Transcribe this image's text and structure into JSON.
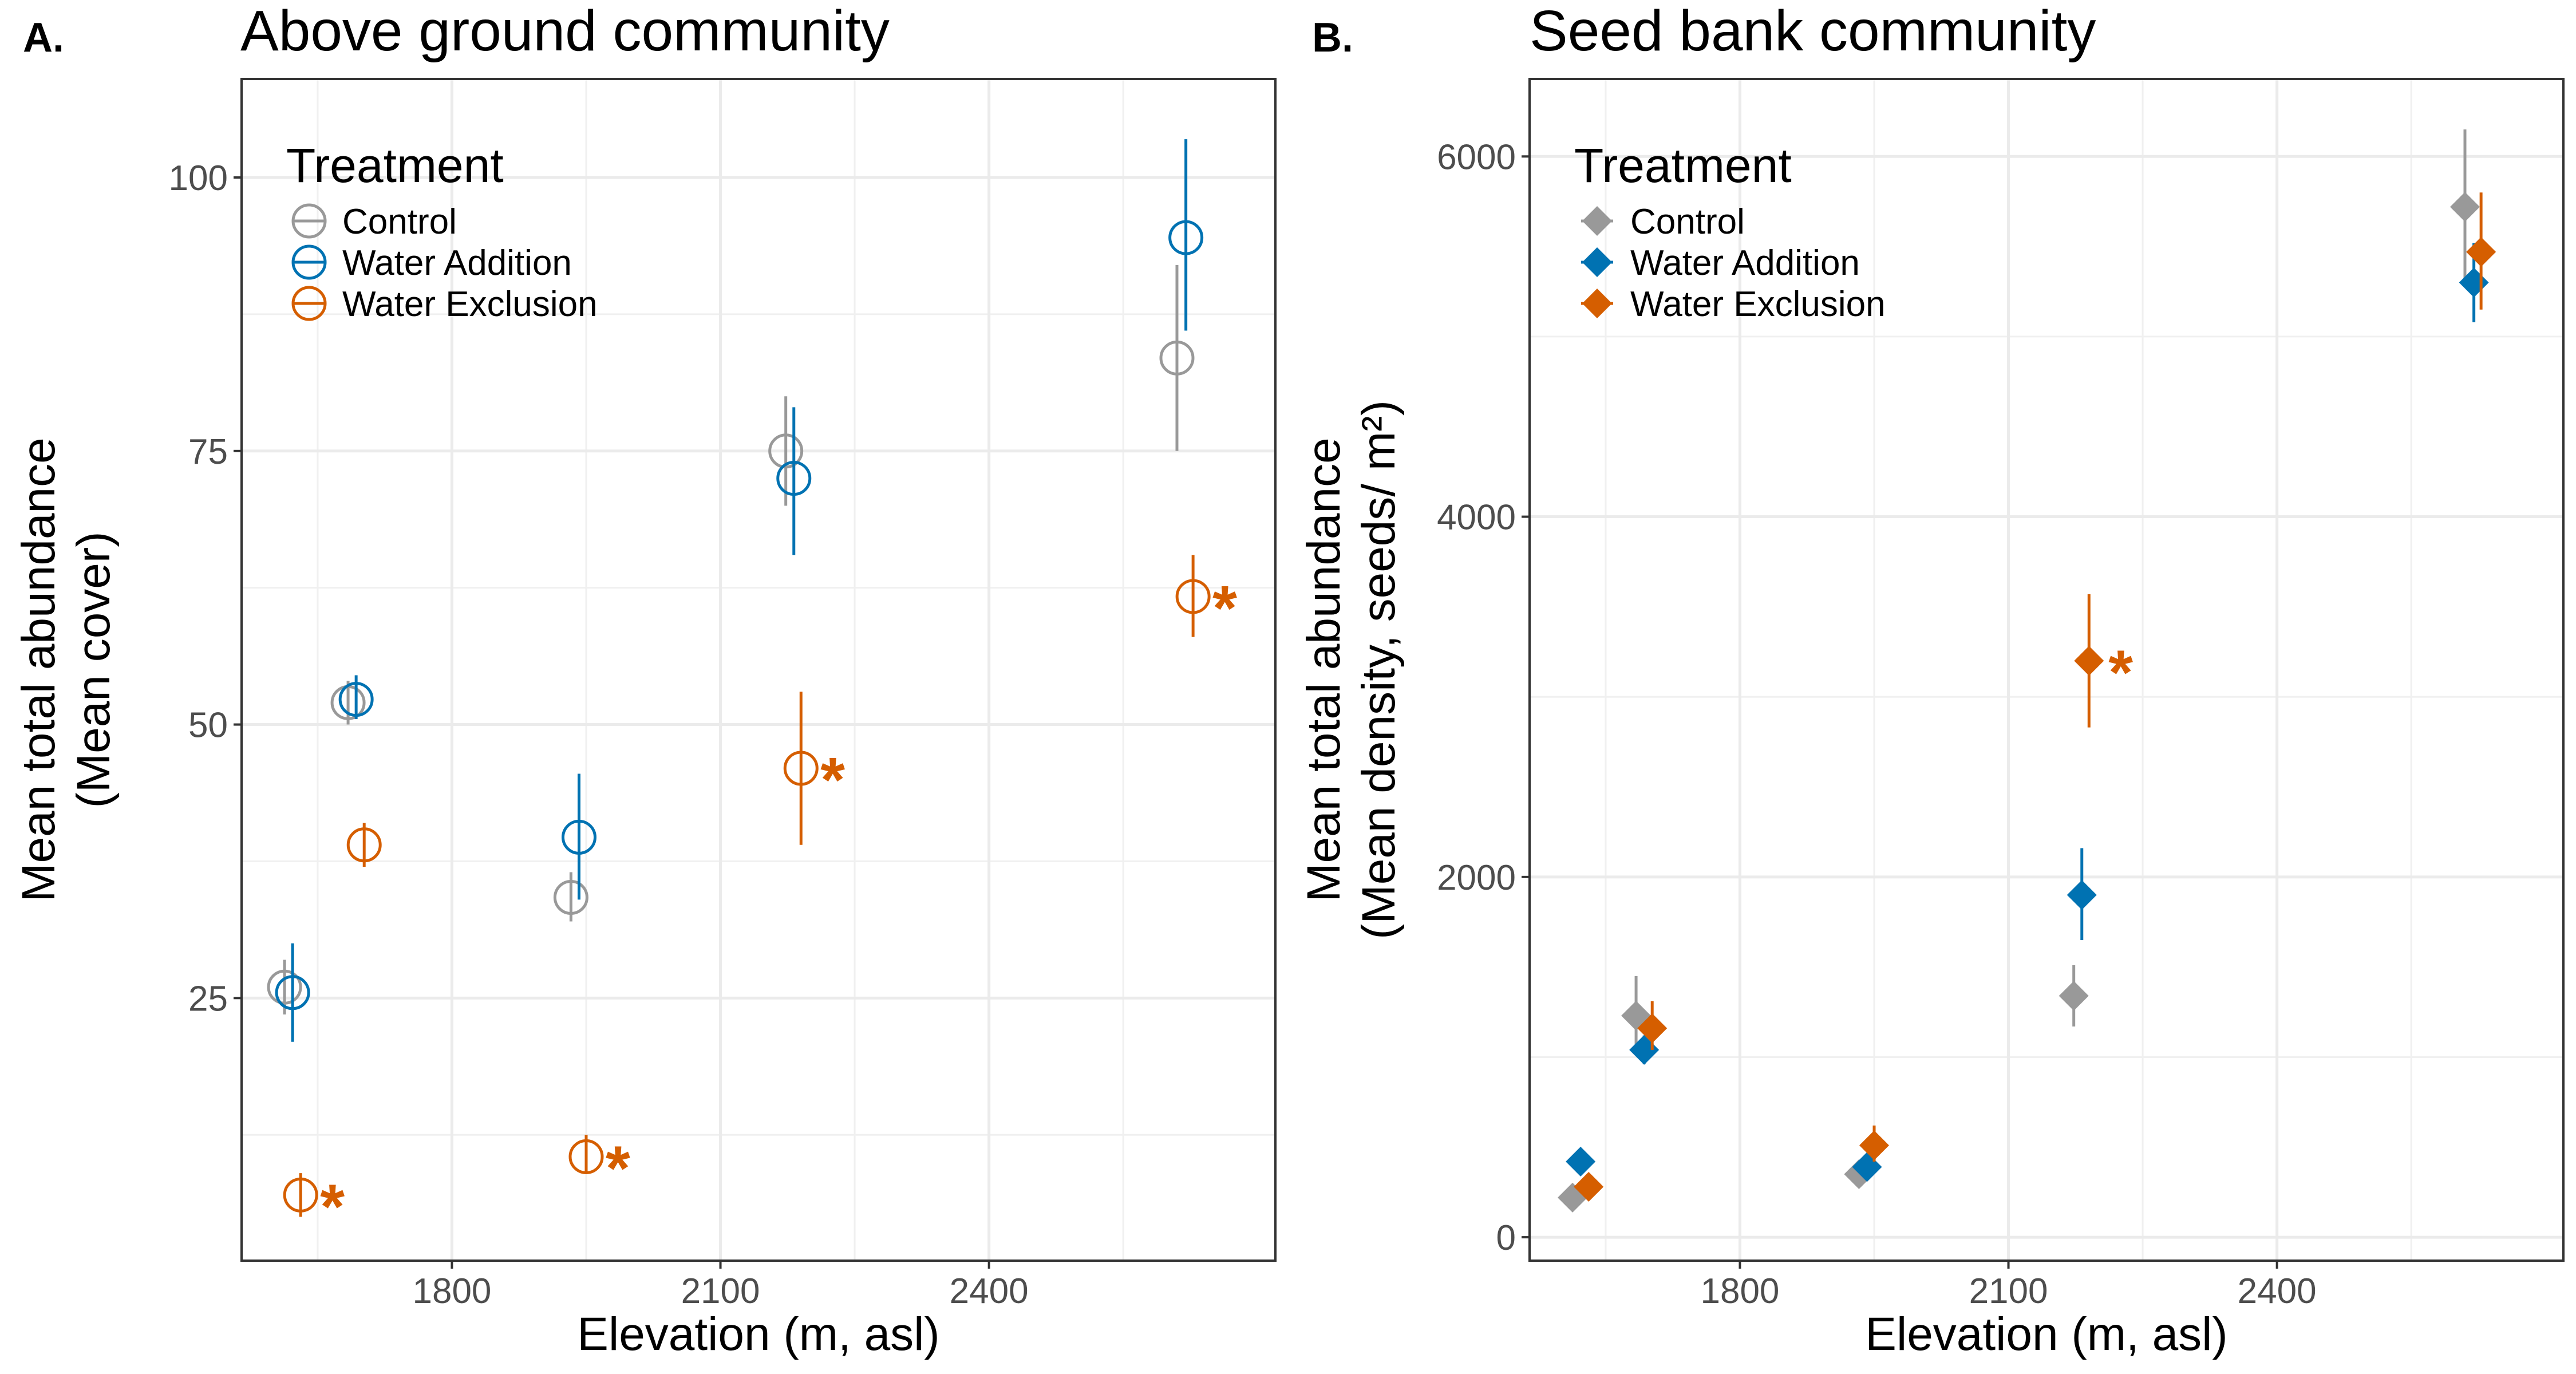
{
  "colors": {
    "Control": "#999999",
    "Water Addition": "#0072B2",
    "Water Exclusion": "#D55E00"
  },
  "chart_data": [
    {
      "type": "scatter",
      "panel": "A.",
      "title": "Above ground community",
      "xlabel": "Elevation (m, asl)",
      "ylabel": [
        "Mean total abundance",
        "(Mean cover)"
      ],
      "xlim": [
        1565,
        2720
      ],
      "ylim": [
        1,
        109
      ],
      "xticks": [
        1800,
        2100,
        2400
      ],
      "yticks": [
        25,
        50,
        75,
        100
      ],
      "minor_xticks": [
        1650,
        1950,
        2250,
        2550
      ],
      "minor_yticks": [
        12.5,
        37.5,
        62.5,
        87.5
      ],
      "grid": true,
      "marker": "open-circle",
      "legend": {
        "title": "Treatment",
        "position": "top-left",
        "entries": [
          "Control",
          "Water Addition",
          "Water Exclusion"
        ]
      },
      "series": [
        {
          "name": "Control",
          "points": [
            {
              "x": 1613,
              "y": 26,
              "lo": 23.5,
              "hi": 28.5
            },
            {
              "x": 1684,
              "y": 52,
              "lo": 50,
              "hi": 54
            },
            {
              "x": 1933,
              "y": 34.2,
              "lo": 32,
              "hi": 36.5
            },
            {
              "x": 2173,
              "y": 75,
              "lo": 70,
              "hi": 80
            },
            {
              "x": 2610,
              "y": 83.5,
              "lo": 75,
              "hi": 92
            }
          ]
        },
        {
          "name": "Water Addition",
          "points": [
            {
              "x": 1622,
              "y": 25.5,
              "lo": 21,
              "hi": 30
            },
            {
              "x": 1693,
              "y": 52.3,
              "lo": 50.5,
              "hi": 54.5
            },
            {
              "x": 1942,
              "y": 39.7,
              "lo": 34,
              "hi": 45.5
            },
            {
              "x": 2182,
              "y": 72.5,
              "lo": 65.5,
              "hi": 79
            },
            {
              "x": 2620,
              "y": 94.5,
              "lo": 86,
              "hi": 103.5
            }
          ]
        },
        {
          "name": "Water Exclusion",
          "points": [
            {
              "x": 1631,
              "y": 7,
              "lo": 5,
              "hi": 9,
              "sig": "*"
            },
            {
              "x": 1702,
              "y": 39,
              "lo": 37,
              "hi": 41
            },
            {
              "x": 1950,
              "y": 10.5,
              "lo": 9,
              "hi": 12.5,
              "sig": "*"
            },
            {
              "x": 2190,
              "y": 46,
              "lo": 39,
              "hi": 53,
              "sig": "*"
            },
            {
              "x": 2628,
              "y": 61.7,
              "lo": 58,
              "hi": 65.5,
              "sig": "*"
            }
          ]
        }
      ]
    },
    {
      "type": "scatter",
      "panel": "B.",
      "title": "Seed bank community",
      "xlabel": "Elevation (m, asl)",
      "ylabel": [
        "Mean total abundance",
        "(Mean density, seeds/ m²)"
      ],
      "xlim": [
        1565,
        2720
      ],
      "ylim": [
        -130,
        6430
      ],
      "xticks": [
        1800,
        2100,
        2400
      ],
      "yticks": [
        0,
        2000,
        4000,
        6000
      ],
      "minor_xticks": [
        1650,
        1950,
        2250,
        2550
      ],
      "minor_yticks": [
        1000,
        3000,
        5000
      ],
      "grid": true,
      "marker": "filled-diamond",
      "legend": {
        "title": "Treatment",
        "position": "top-left",
        "entries": [
          "Control",
          "Water Addition",
          "Water Exclusion"
        ]
      },
      "series": [
        {
          "name": "Control",
          "points": [
            {
              "x": 1613,
              "y": 220,
              "lo": 170,
              "hi": 270
            },
            {
              "x": 1684,
              "y": 1230,
              "lo": 1050,
              "hi": 1450
            },
            {
              "x": 1933,
              "y": 350,
              "lo": 300,
              "hi": 400
            },
            {
              "x": 2173,
              "y": 1340,
              "lo": 1170,
              "hi": 1510
            },
            {
              "x": 2610,
              "y": 5720,
              "lo": 5300,
              "hi": 6150
            }
          ]
        },
        {
          "name": "Water Addition",
          "points": [
            {
              "x": 1622,
              "y": 420,
              "lo": 350,
              "hi": 490
            },
            {
              "x": 1693,
              "y": 1040,
              "lo": 960,
              "hi": 1120
            },
            {
              "x": 1942,
              "y": 390,
              "lo": 320,
              "hi": 460
            },
            {
              "x": 2182,
              "y": 1900,
              "lo": 1650,
              "hi": 2160
            },
            {
              "x": 2620,
              "y": 5300,
              "lo": 5080,
              "hi": 5520
            }
          ]
        },
        {
          "name": "Water Exclusion",
          "points": [
            {
              "x": 1631,
              "y": 280,
              "lo": 230,
              "hi": 330
            },
            {
              "x": 1702,
              "y": 1160,
              "lo": 1040,
              "hi": 1310
            },
            {
              "x": 1950,
              "y": 510,
              "lo": 420,
              "hi": 620
            },
            {
              "x": 2190,
              "y": 3200,
              "lo": 2830,
              "hi": 3570,
              "sig": "*"
            },
            {
              "x": 2628,
              "y": 5470,
              "lo": 5150,
              "hi": 5800
            }
          ]
        }
      ]
    }
  ]
}
